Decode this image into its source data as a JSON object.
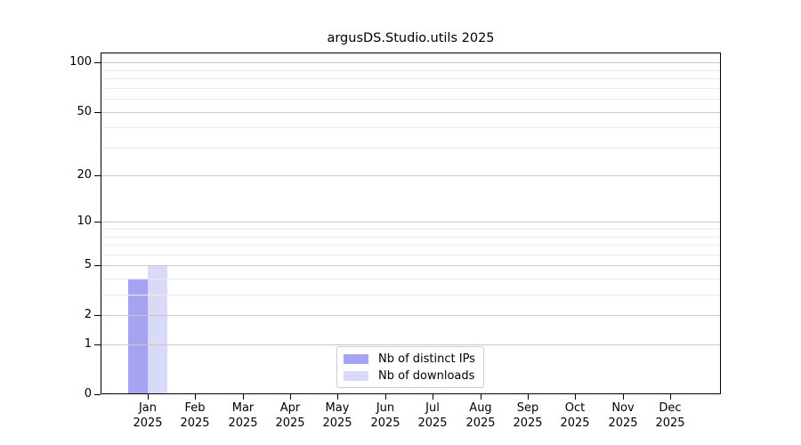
{
  "title": "argusDS.Studio.utils 2025",
  "chart_data": {
    "type": "bar",
    "title": "argusDS.Studio.utils 2025",
    "categories": [
      "Jan",
      "Feb",
      "Mar",
      "Apr",
      "May",
      "Jun",
      "Jul",
      "Aug",
      "Sep",
      "Oct",
      "Nov",
      "Dec"
    ],
    "category_year": "2025",
    "series": [
      {
        "name": "Nb of distinct IPs",
        "color": "#a4a4f2",
        "values": [
          4,
          0,
          0,
          0,
          0,
          0,
          0,
          0,
          0,
          0,
          0,
          0
        ]
      },
      {
        "name": "Nb of downloads",
        "color": "#d9d9f8",
        "values": [
          5,
          0,
          0,
          0,
          0,
          0,
          0,
          0,
          0,
          0,
          0,
          0
        ]
      }
    ],
    "yscale": "log1p",
    "ylim": [
      0,
      115
    ],
    "y_tick_values": [
      0,
      1,
      2,
      5,
      10,
      20,
      50,
      100
    ],
    "y_minor_grid_values": [
      3,
      4,
      6,
      7,
      8,
      9,
      30,
      40,
      60,
      70,
      80,
      90
    ],
    "grid": true,
    "legend_position": "lower center"
  },
  "colors": {
    "background": "#ffffff",
    "axis": "#000000",
    "grid_major": "#c8c8c8",
    "grid_minor": "#ececec",
    "legend_border": "#cccccc"
  }
}
